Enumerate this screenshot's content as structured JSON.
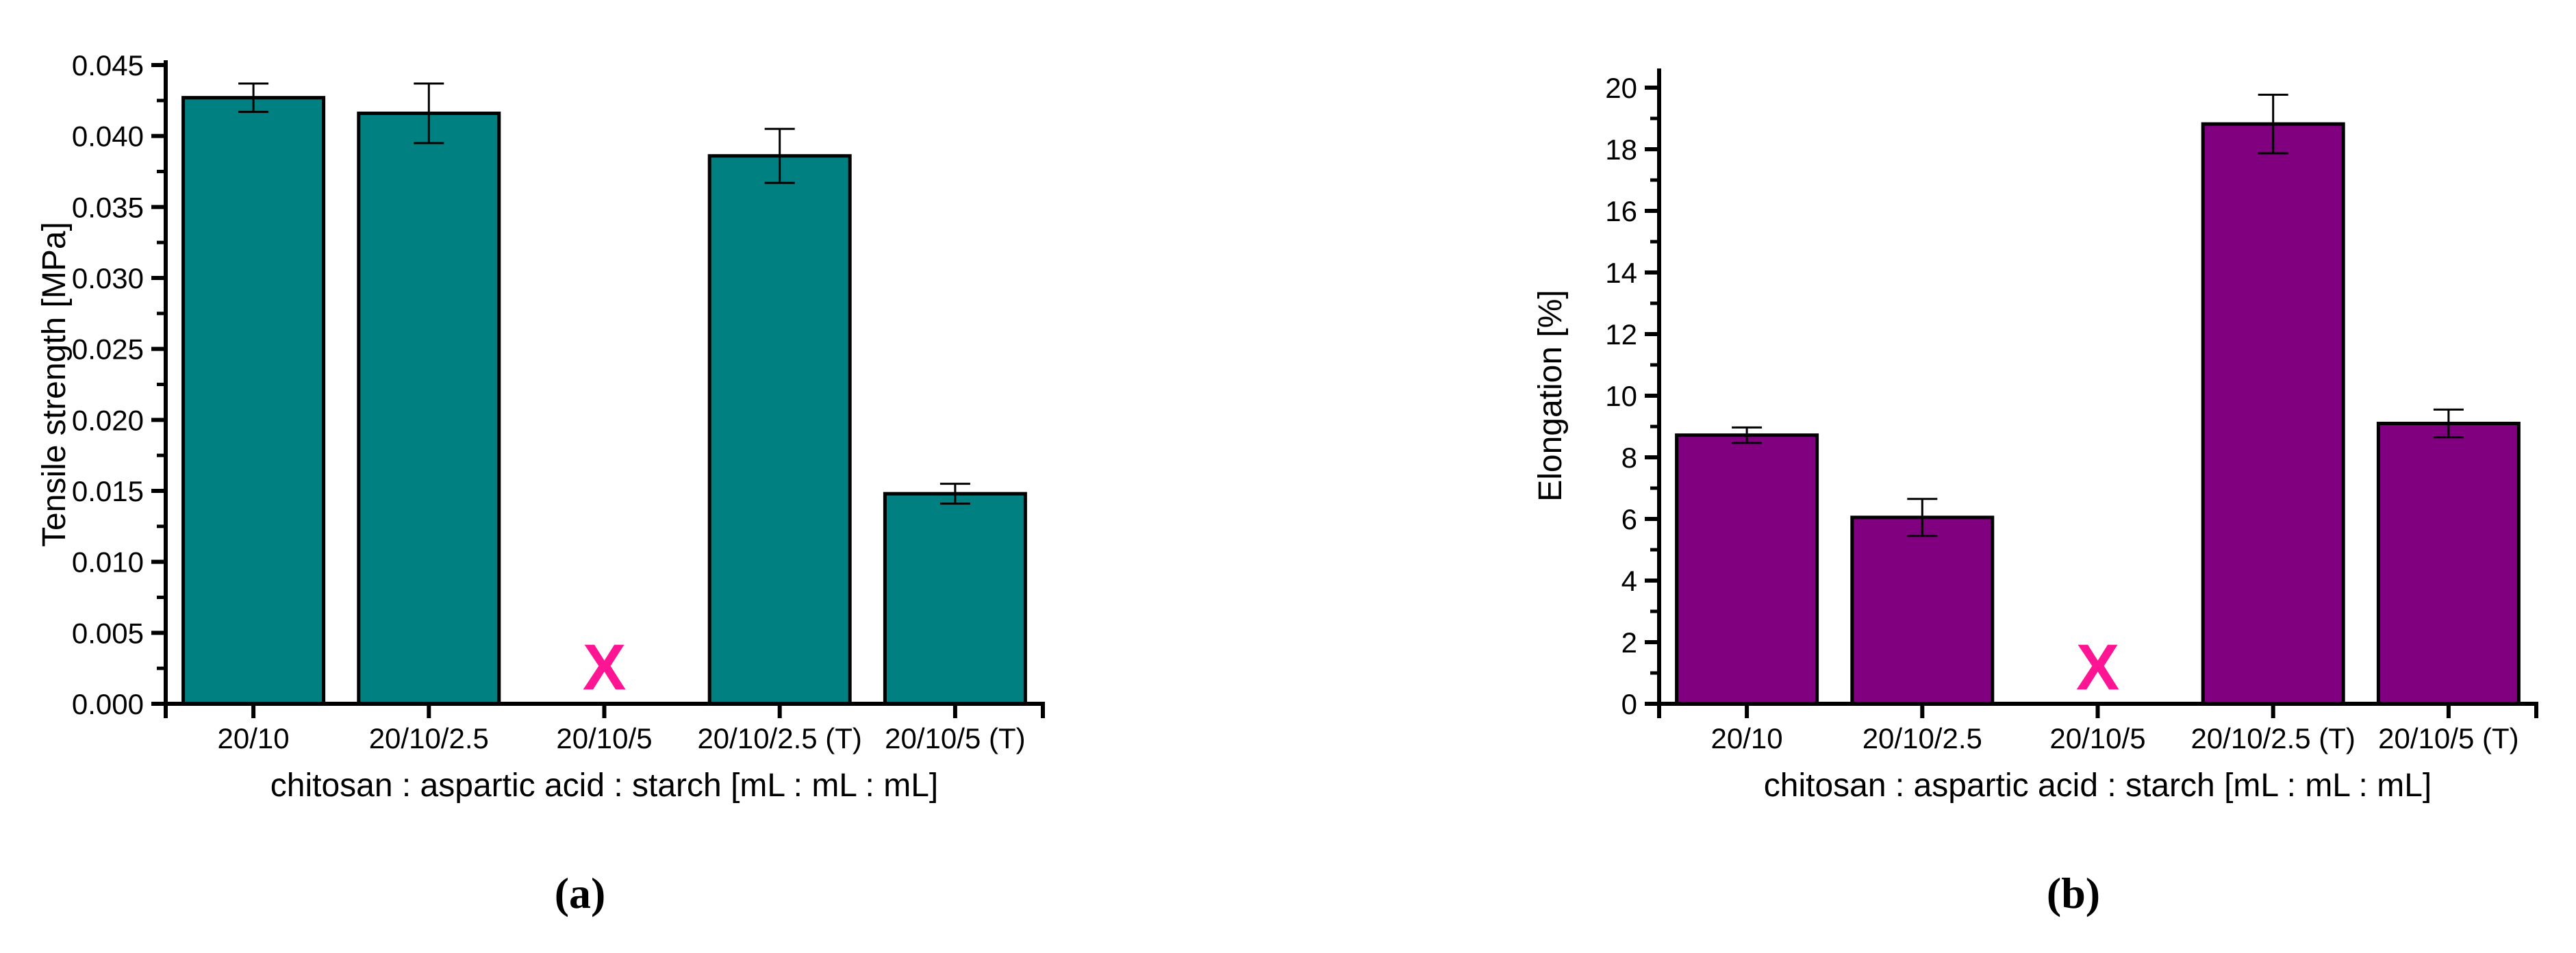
{
  "figure": {
    "background": "#ffffff",
    "captions": {
      "a": "(a)",
      "b": "(b)"
    }
  },
  "chart_data": [
    {
      "type": "bar",
      "panel": "a",
      "categories": [
        "20/10",
        "20/10/2.5",
        "20/10/5",
        "20/10/2.5 (T)",
        "20/10/5 (T)"
      ],
      "values": [
        0.0427,
        0.0416,
        null,
        0.0386,
        0.0148
      ],
      "errors": [
        0.001,
        0.0021,
        null,
        0.0019,
        0.0007
      ],
      "missing_marker": {
        "category": "20/10/5",
        "symbol": "X",
        "color": "#FF1493",
        "value": 0.0026
      },
      "xlabel": "chitosan : aspartic acid : starch [mL : mL : mL]",
      "ylabel": "Tensile strength [MPa]",
      "ylim": [
        0,
        0.045
      ],
      "ytick_step": 0.005,
      "yminor_step": 0.0025,
      "ytick_values": [
        0,
        0.005,
        0.01,
        0.015,
        0.02,
        0.025,
        0.03,
        0.035,
        0.04,
        0.045
      ],
      "ytick_labels": [
        "0.000",
        "0.005",
        "0.010",
        "0.015",
        "0.020",
        "0.025",
        "0.030",
        "0.035",
        "0.040",
        "0.045"
      ],
      "bar_color": "#008080",
      "bar_outline": "#000000",
      "grid": false,
      "legend": "none"
    },
    {
      "type": "bar",
      "panel": "b",
      "categories": [
        "20/10",
        "20/10/2.5",
        "20/10/5",
        "20/10/2.5 (T)",
        "20/10/5 (T)"
      ],
      "values": [
        8.72,
        6.05,
        null,
        18.82,
        9.1
      ],
      "errors": [
        0.25,
        0.6,
        null,
        0.95,
        0.45
      ],
      "missing_marker": {
        "category": "20/10/5",
        "symbol": "X",
        "color": "#FF1493",
        "value": 1.2
      },
      "xlabel": "chitosan : aspartic acid : starch [mL : mL : mL]",
      "ylabel": "Elongation [%]",
      "ylim": [
        0,
        20
      ],
      "ytick_step": 2,
      "yminor_step": 1,
      "ytick_values": [
        0,
        2,
        4,
        6,
        8,
        10,
        12,
        14,
        16,
        18,
        20
      ],
      "ytick_labels": [
        "0",
        "2",
        "4",
        "6",
        "8",
        "10",
        "12",
        "14",
        "16",
        "18",
        "20"
      ],
      "bar_color": "#800080",
      "bar_outline": "#000000",
      "grid": false,
      "legend": "none"
    }
  ]
}
